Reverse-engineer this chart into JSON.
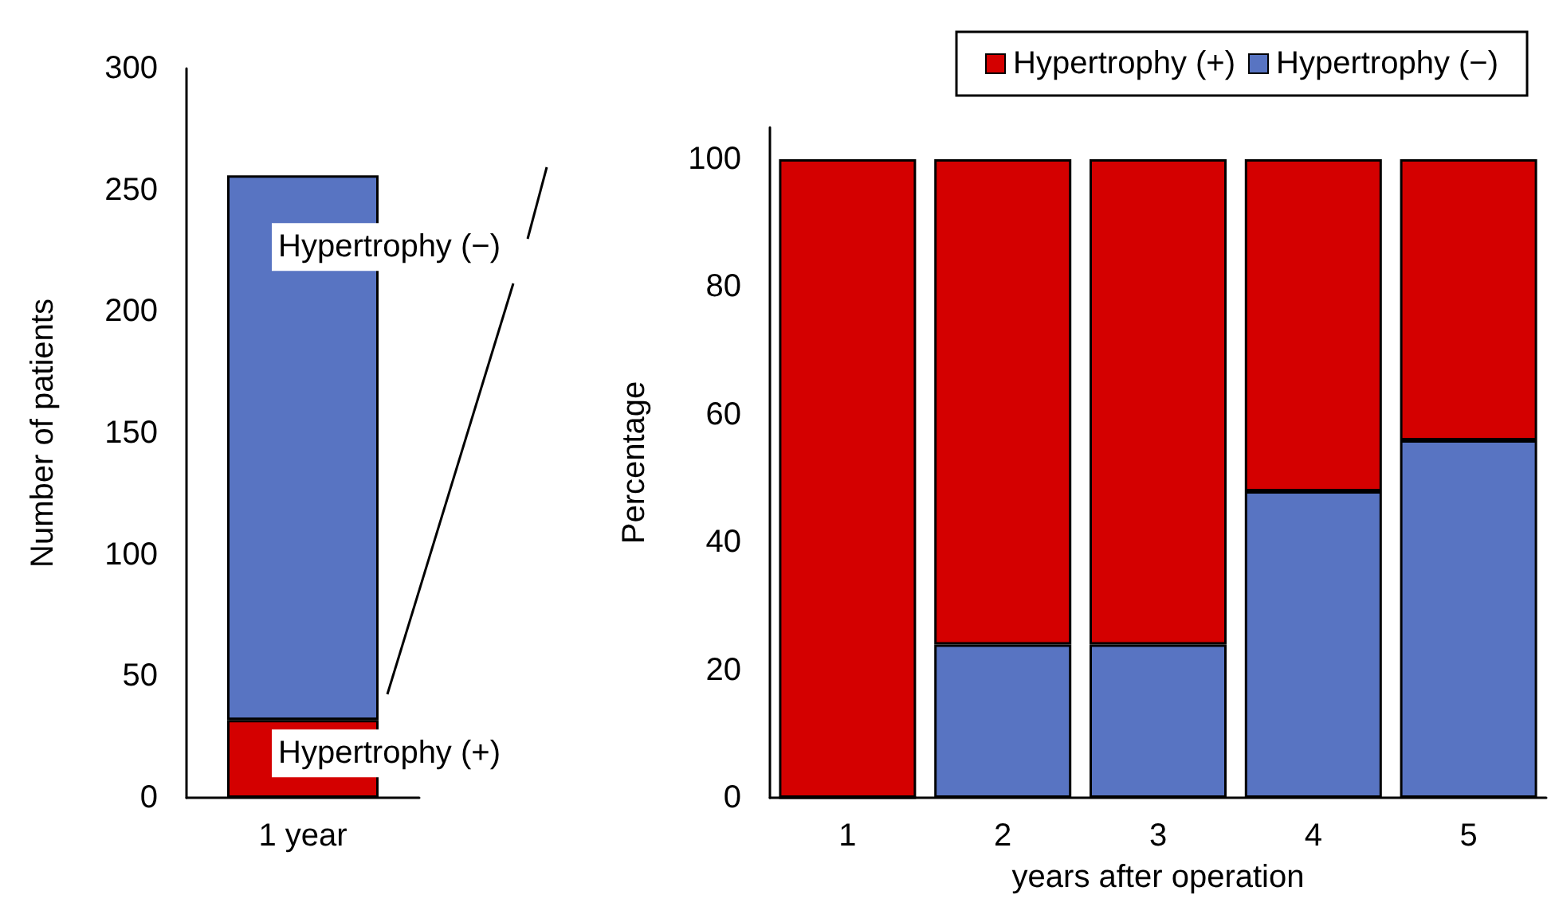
{
  "chart_data": [
    {
      "type": "bar",
      "stacked": true,
      "categories": [
        "1 year"
      ],
      "ylabel": "Number of patients",
      "ylim": [
        0,
        300
      ],
      "yticks": [
        0,
        50,
        100,
        150,
        200,
        250,
        300
      ],
      "legend": false,
      "grid": false,
      "series": [
        {
          "name": "Hypertrophy (+)",
          "color": "#d40000",
          "values": [
            32
          ]
        },
        {
          "name": "Hypertrophy (−)",
          "color": "#5874c2",
          "values": [
            224
          ]
        }
      ]
    },
    {
      "type": "bar",
      "stacked": true,
      "categories": [
        "1",
        "2",
        "3",
        "4",
        "5"
      ],
      "xlabel": "years after operation",
      "ylabel": "Percentage",
      "ylim": [
        0,
        105
      ],
      "yticks": [
        0,
        20,
        40,
        60,
        80,
        100
      ],
      "legend": "top right",
      "grid": false,
      "series": [
        {
          "name": "Hypertrophy (−)",
          "color": "#5874c2",
          "values": [
            0,
            24,
            24,
            48,
            56
          ]
        },
        {
          "name": "Hypertrophy (+)",
          "color": "#d40000",
          "values": [
            100,
            76,
            76,
            52,
            44
          ]
        }
      ]
    }
  ]
}
